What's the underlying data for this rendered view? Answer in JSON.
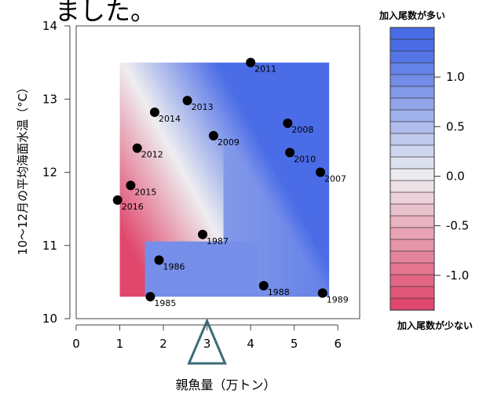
{
  "header_fragment": "ました。",
  "chart_data": {
    "type": "scatter",
    "overlay": "filled-contour",
    "title": "",
    "xlabel": "親魚量（万トン）",
    "ylabel": "10～12月の平均海面水温（°C）",
    "xlim": [
      0,
      6.5
    ],
    "ylim": [
      10,
      14
    ],
    "xticks": [
      0,
      1,
      2,
      3,
      4,
      5,
      6
    ],
    "yticks": [
      10,
      11,
      12,
      13,
      14
    ],
    "grid": false,
    "contour_extent": {
      "x": [
        1.0,
        5.8
      ],
      "y": [
        10.3,
        13.5
      ]
    },
    "points": [
      {
        "label": "1985",
        "x": 1.7,
        "y": 10.3
      },
      {
        "label": "1986",
        "x": 1.9,
        "y": 10.8
      },
      {
        "label": "1987",
        "x": 2.9,
        "y": 11.15
      },
      {
        "label": "1988",
        "x": 4.3,
        "y": 10.45
      },
      {
        "label": "1989",
        "x": 5.65,
        "y": 10.35
      },
      {
        "label": "2007",
        "x": 5.6,
        "y": 12.0
      },
      {
        "label": "2008",
        "x": 4.85,
        "y": 12.67
      },
      {
        "label": "2009",
        "x": 3.15,
        "y": 12.5
      },
      {
        "label": "2010",
        "x": 4.9,
        "y": 12.27
      },
      {
        "label": "2011",
        "x": 4.0,
        "y": 13.5
      },
      {
        "label": "2012",
        "x": 1.4,
        "y": 12.33
      },
      {
        "label": "2013",
        "x": 2.55,
        "y": 12.98
      },
      {
        "label": "2014",
        "x": 1.8,
        "y": 12.82
      },
      {
        "label": "2015",
        "x": 1.25,
        "y": 11.82
      },
      {
        "label": "2016",
        "x": 0.95,
        "y": 11.62
      }
    ],
    "marker": {
      "x": 3.0,
      "shape": "triangle"
    },
    "colorbar": {
      "top_label": "加入尾数が多い",
      "bottom_label": "加入尾数が少ない",
      "ticks": [
        1.0,
        0.5,
        0.0,
        -0.5,
        -1.0
      ],
      "tick_labels": [
        "1.0",
        "0.5",
        "0.0",
        "-0.5",
        "-1.0"
      ],
      "range": [
        -1.35,
        1.5
      ],
      "levels": 24,
      "colors": {
        "high": "#4a6ce6",
        "mid": "#eeeef0",
        "low": "#e0476c"
      }
    }
  }
}
